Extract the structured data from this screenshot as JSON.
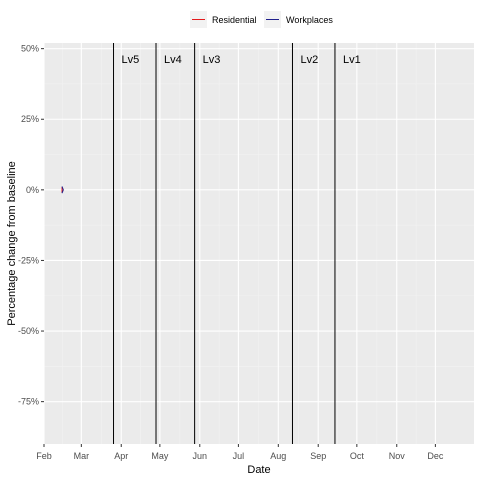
{
  "chart_data": {
    "type": "line",
    "title": "",
    "xlabel": "Date",
    "ylabel": "Percentage change from baseline",
    "x_range": [
      "2020-02-01",
      "2020-12-31"
    ],
    "ylim": [
      -0.9,
      0.52
    ],
    "x_ticks": [
      {
        "date": "2020-02-01",
        "label": "Feb"
      },
      {
        "date": "2020-03-01",
        "label": "Mar"
      },
      {
        "date": "2020-04-01",
        "label": "Apr"
      },
      {
        "date": "2020-05-01",
        "label": "May"
      },
      {
        "date": "2020-06-01",
        "label": "Jun"
      },
      {
        "date": "2020-07-01",
        "label": "Jul"
      },
      {
        "date": "2020-08-01",
        "label": "Aug"
      },
      {
        "date": "2020-09-01",
        "label": "Sep"
      },
      {
        "date": "2020-10-01",
        "label": "Oct"
      },
      {
        "date": "2020-11-01",
        "label": "Nov"
      },
      {
        "date": "2020-12-01",
        "label": "Dec"
      }
    ],
    "y_ticks": [
      {
        "value": 0.5,
        "label": "50%"
      },
      {
        "value": 0.25,
        "label": "25%"
      },
      {
        "value": 0,
        "label": "0%"
      },
      {
        "value": -0.25,
        "label": "-25%"
      },
      {
        "value": -0.5,
        "label": "-50%"
      },
      {
        "value": -0.75,
        "label": "-75%"
      }
    ],
    "grid": true,
    "legend_position": "top",
    "series": [
      {
        "name": "Residential",
        "color": "#e41a1c",
        "points": [
          {
            "x": "2020-02-15",
            "y": 0.01
          },
          {
            "x": "2020-02-15",
            "y": -0.01
          }
        ]
      },
      {
        "name": "Workplaces",
        "color": "#1f1f8c",
        "points": [
          {
            "x": "2020-02-15",
            "y": 0.012
          },
          {
            "x": "2020-02-16",
            "y": 0.0
          },
          {
            "x": "2020-02-15",
            "y": -0.012
          }
        ]
      }
    ],
    "vlines": [
      {
        "date": "2020-03-26",
        "label": "Lv5"
      },
      {
        "date": "2020-04-28",
        "label": "Lv4"
      },
      {
        "date": "2020-05-28",
        "label": "Lv3"
      },
      {
        "date": "2020-08-12",
        "label": "Lv2"
      },
      {
        "date": "2020-09-14",
        "label": "Lv1"
      }
    ],
    "colors": {
      "panel": "#ebebeb",
      "grid_major": "#ffffff",
      "grid_minor": "#f2f2f2",
      "vline": "#000000"
    }
  }
}
